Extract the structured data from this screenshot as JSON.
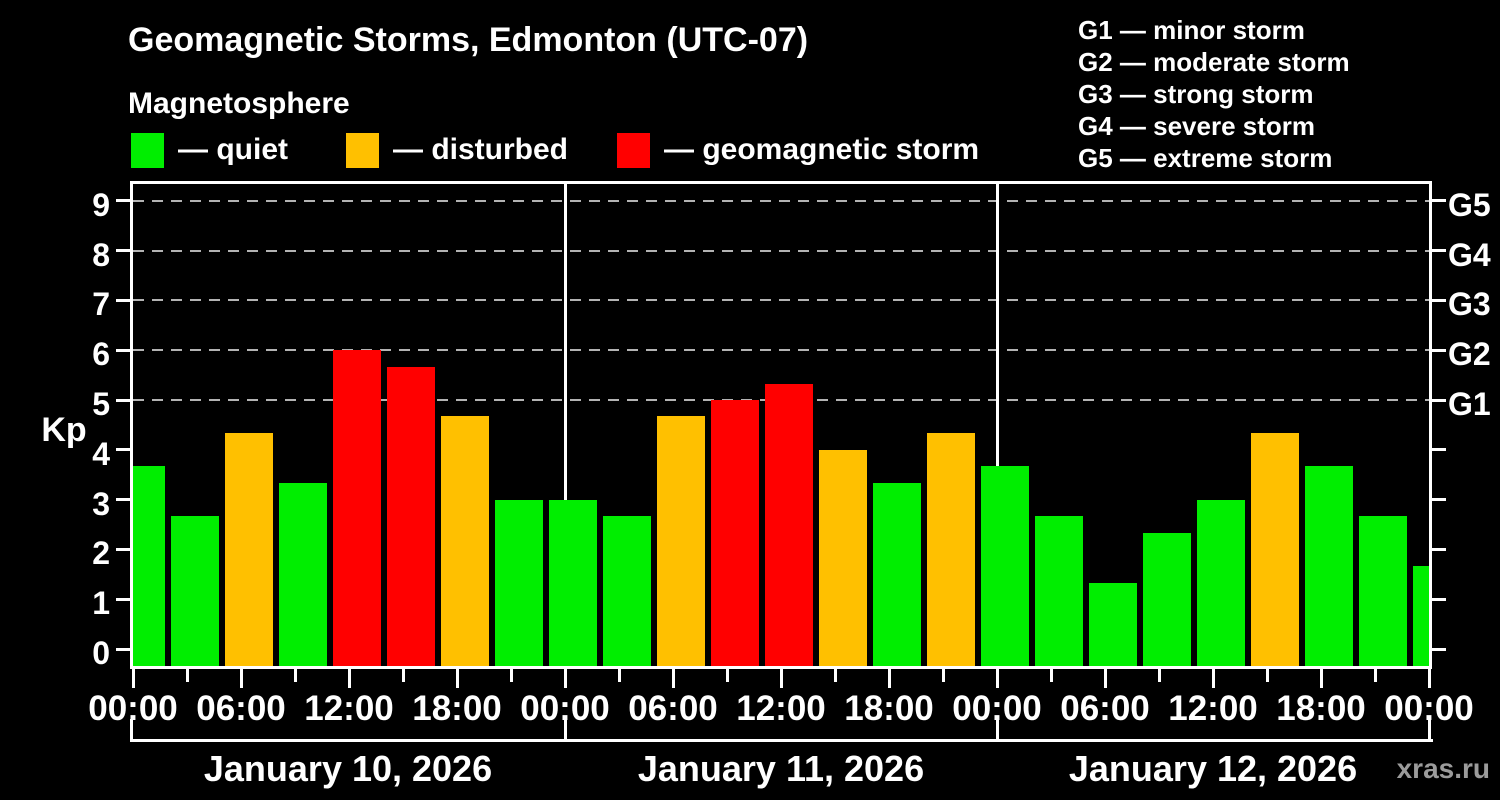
{
  "header": {
    "title": "Geomagnetic Storms, Edmonton (UTC-07)",
    "subtitle": "Magnetosphere",
    "legend": [
      {
        "key": "quiet",
        "label": "— quiet"
      },
      {
        "key": "disturbed",
        "label": "— disturbed"
      },
      {
        "key": "storm",
        "label": "— geomagnetic storm"
      }
    ],
    "storm_scale_legend": [
      "G1 — minor storm",
      "G2 — moderate storm",
      "G3 — strong storm",
      "G4 — severe storm",
      "G5 — extreme storm"
    ]
  },
  "watermark": "xras.ru",
  "chart_data": {
    "type": "bar",
    "title": "Geomagnetic Storms, Edmonton (UTC-07)",
    "subtitle": "Magnetosphere",
    "ylabel": "Kp",
    "ylim": [
      0,
      9
    ],
    "y_axis": {
      "ticks": [
        0,
        1,
        2,
        3,
        4,
        5,
        6,
        7,
        8,
        9
      ]
    },
    "right_axis": [
      {
        "label": "G1",
        "kp": 5
      },
      {
        "label": "G2",
        "kp": 6
      },
      {
        "label": "G3",
        "kp": 7
      },
      {
        "label": "G4",
        "kp": 8
      },
      {
        "label": "G5",
        "kp": 9
      }
    ],
    "grid": "dashed horizontal lines at Kp 5-9",
    "legend_position": "top",
    "bar_interval_hours": 3,
    "x_labels": [
      "00:00",
      "06:00",
      "12:00",
      "18:00",
      "00:00",
      "06:00",
      "12:00",
      "18:00",
      "00:00",
      "06:00",
      "12:00",
      "18:00",
      "00:00"
    ],
    "days": [
      {
        "date": "January 10, 2026",
        "values": [
          3.67,
          2.67,
          4.33,
          3.33,
          6.0,
          5.67,
          4.67,
          3.0
        ]
      },
      {
        "date": "January 11, 2026",
        "values": [
          3.0,
          2.67,
          4.67,
          5.0,
          5.33,
          4.0,
          3.33,
          4.33
        ]
      },
      {
        "date": "January 12, 2026",
        "values": [
          3.67,
          2.67,
          1.33,
          2.33,
          3.0,
          4.33,
          3.67,
          2.67
        ]
      }
    ],
    "next_day_partial_value": 1.67,
    "thresholds": {
      "disturbed_at": 4,
      "storm_at": 5
    },
    "colors": {
      "quiet": "#00ee00",
      "disturbed": "#ffc000",
      "storm": "#ff0000"
    },
    "frame_color": "#ffffff",
    "background_color": "#000000",
    "gridline_color": "#b3b3b3"
  }
}
